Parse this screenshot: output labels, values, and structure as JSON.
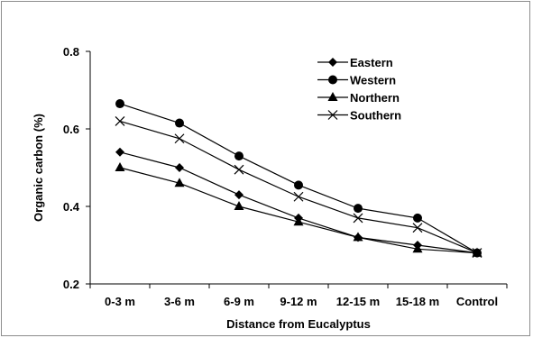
{
  "chart_data": {
    "type": "line",
    "title": "",
    "xlabel": "Distance from Eucalyptus",
    "ylabel": "Organic carbon (%)",
    "categories": [
      "0-3 m",
      "3-6 m",
      "6-9 m",
      "9-12 m",
      "12-15 m",
      "15-18 m",
      "Control"
    ],
    "ylim": [
      0.2,
      0.8
    ],
    "yticks": [
      "0.2",
      "0.4",
      "0.6",
      "0.8"
    ],
    "grid": false,
    "legend_position": "top-right",
    "series": [
      {
        "name": "Eastern",
        "marker": "diamond",
        "values": [
          0.54,
          0.5,
          0.43,
          0.37,
          0.32,
          0.3,
          0.28
        ]
      },
      {
        "name": "Western",
        "marker": "circle",
        "values": [
          0.665,
          0.615,
          0.53,
          0.455,
          0.395,
          0.37,
          0.28
        ]
      },
      {
        "name": "Northern",
        "marker": "triangle",
        "values": [
          0.5,
          0.46,
          0.4,
          0.36,
          0.32,
          0.29,
          0.28
        ]
      },
      {
        "name": "Southern",
        "marker": "x",
        "values": [
          0.62,
          0.575,
          0.495,
          0.425,
          0.37,
          0.345,
          0.28
        ]
      }
    ]
  }
}
